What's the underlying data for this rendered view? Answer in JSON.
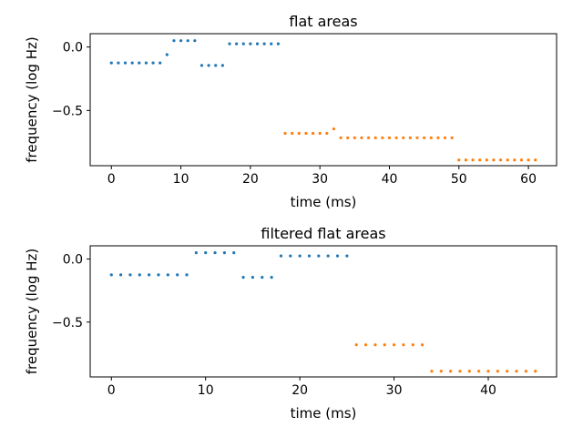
{
  "chart_data": [
    {
      "type": "scatter",
      "title": "flat areas",
      "xlabel": "time (ms)",
      "ylabel": "frequency (log Hz)",
      "xlim": [
        -3.05,
        64.05
      ],
      "ylim": [
        -0.935,
        0.105
      ],
      "xticks": [
        0,
        10,
        20,
        30,
        40,
        50,
        60
      ],
      "yticks": [
        0.0,
        -0.5
      ],
      "ytick_labels": [
        "0.0",
        "−0.5"
      ],
      "grid": false,
      "series": [
        {
          "color": "#1f77b4",
          "points": [
            [
              0,
              -0.125
            ],
            [
              1,
              -0.125
            ],
            [
              2,
              -0.125
            ],
            [
              3,
              -0.125
            ],
            [
              4,
              -0.125
            ],
            [
              5,
              -0.125
            ],
            [
              6,
              -0.125
            ],
            [
              7,
              -0.125
            ],
            [
              8,
              -0.06
            ],
            [
              9,
              0.05
            ],
            [
              10,
              0.05
            ],
            [
              11,
              0.05
            ],
            [
              12,
              0.05
            ],
            [
              13,
              -0.145
            ],
            [
              14,
              -0.145
            ],
            [
              15,
              -0.145
            ],
            [
              16,
              -0.145
            ],
            [
              17,
              0.025
            ],
            [
              18,
              0.025
            ],
            [
              19,
              0.025
            ],
            [
              20,
              0.025
            ],
            [
              21,
              0.025
            ],
            [
              22,
              0.025
            ],
            [
              23,
              0.025
            ],
            [
              24,
              0.025
            ]
          ]
        },
        {
          "color": "#ff7f0e",
          "points": [
            [
              25,
              -0.68
            ],
            [
              26,
              -0.68
            ],
            [
              27,
              -0.68
            ],
            [
              28,
              -0.68
            ],
            [
              29,
              -0.68
            ],
            [
              30,
              -0.68
            ],
            [
              31,
              -0.68
            ],
            [
              32,
              -0.645
            ],
            [
              33,
              -0.715
            ],
            [
              34,
              -0.715
            ],
            [
              35,
              -0.715
            ],
            [
              36,
              -0.715
            ],
            [
              37,
              -0.715
            ],
            [
              38,
              -0.715
            ],
            [
              39,
              -0.715
            ],
            [
              40,
              -0.715
            ],
            [
              41,
              -0.715
            ],
            [
              42,
              -0.715
            ],
            [
              43,
              -0.715
            ],
            [
              44,
              -0.715
            ],
            [
              45,
              -0.715
            ],
            [
              46,
              -0.715
            ],
            [
              47,
              -0.715
            ],
            [
              48,
              -0.715
            ],
            [
              49,
              -0.715
            ],
            [
              50,
              -0.89
            ],
            [
              51,
              -0.89
            ],
            [
              52,
              -0.89
            ],
            [
              53,
              -0.89
            ],
            [
              54,
              -0.89
            ],
            [
              55,
              -0.89
            ],
            [
              56,
              -0.89
            ],
            [
              57,
              -0.89
            ],
            [
              58,
              -0.89
            ],
            [
              59,
              -0.89
            ],
            [
              60,
              -0.89
            ],
            [
              61,
              -0.89
            ]
          ]
        }
      ]
    },
    {
      "type": "scatter",
      "title": "filtered flat areas",
      "xlabel": "time (ms)",
      "ylabel": "frequency (log Hz)",
      "xlim": [
        -2.25,
        47.25
      ],
      "ylim": [
        -0.935,
        0.105
      ],
      "xticks": [
        0,
        10,
        20,
        30,
        40
      ],
      "yticks": [
        0.0,
        -0.5
      ],
      "ytick_labels": [
        "0.0",
        "−0.5"
      ],
      "grid": false,
      "series": [
        {
          "color": "#1f77b4",
          "points": [
            [
              0,
              -0.125
            ],
            [
              1,
              -0.125
            ],
            [
              2,
              -0.125
            ],
            [
              3,
              -0.125
            ],
            [
              4,
              -0.125
            ],
            [
              5,
              -0.125
            ],
            [
              6,
              -0.125
            ],
            [
              7,
              -0.125
            ],
            [
              8,
              -0.125
            ],
            [
              9,
              0.05
            ],
            [
              10,
              0.05
            ],
            [
              11,
              0.05
            ],
            [
              12,
              0.05
            ],
            [
              13,
              0.05
            ],
            [
              14,
              -0.145
            ],
            [
              15,
              -0.145
            ],
            [
              16,
              -0.145
            ],
            [
              17,
              -0.145
            ],
            [
              18,
              0.025
            ],
            [
              19,
              0.025
            ],
            [
              20,
              0.025
            ],
            [
              21,
              0.025
            ],
            [
              22,
              0.025
            ],
            [
              23,
              0.025
            ],
            [
              24,
              0.025
            ],
            [
              25,
              0.025
            ]
          ]
        },
        {
          "color": "#ff7f0e",
          "points": [
            [
              26,
              -0.68
            ],
            [
              27,
              -0.68
            ],
            [
              28,
              -0.68
            ],
            [
              29,
              -0.68
            ],
            [
              30,
              -0.68
            ],
            [
              31,
              -0.68
            ],
            [
              32,
              -0.68
            ],
            [
              33,
              -0.68
            ],
            [
              34,
              -0.89
            ],
            [
              35,
              -0.89
            ],
            [
              36,
              -0.89
            ],
            [
              37,
              -0.89
            ],
            [
              38,
              -0.89
            ],
            [
              39,
              -0.89
            ],
            [
              40,
              -0.89
            ],
            [
              41,
              -0.89
            ],
            [
              42,
              -0.89
            ],
            [
              43,
              -0.89
            ],
            [
              44,
              -0.89
            ],
            [
              45,
              -0.89
            ]
          ]
        }
      ]
    }
  ]
}
